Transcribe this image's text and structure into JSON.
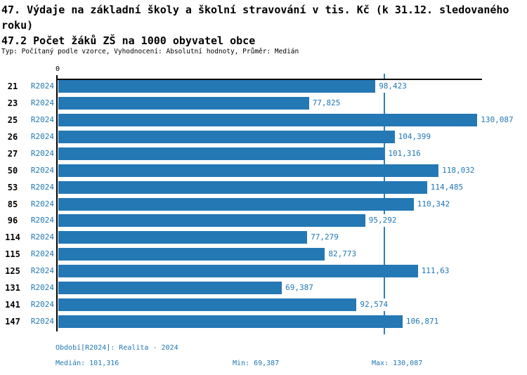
{
  "header": {
    "title_line1": "47. Výdaje na základní školy a školní stravování v tis. Kč (k 31.12. sledovaného roku)",
    "title_line2": "47.2 Počet žáků ZŠ na 1000 obyvatel obce",
    "subtitle": "Typ: Počítaný podle vzorce, Vyhodnocení: Absolutní hodnoty, Průměr: Medián"
  },
  "chart_data": {
    "type": "bar",
    "orientation": "horizontal",
    "title": "47. Výdaje na základní školy a školní stravování v tis. Kč (k 31.12. sledovaného roku)",
    "subtitle": "47.2 Počet žáků ZŠ na 1000 obyvatel obce",
    "origin_label": "0",
    "series_label": "R2024",
    "categories": [
      "21",
      "23",
      "25",
      "26",
      "27",
      "50",
      "53",
      "85",
      "96",
      "114",
      "115",
      "125",
      "131",
      "141",
      "147"
    ],
    "values": [
      98.423,
      77.825,
      130.087,
      104.399,
      101.316,
      118.032,
      114.485,
      110.342,
      95.292,
      77.279,
      82.773,
      111.63,
      69.387,
      92.574,
      106.871
    ],
    "value_labels": [
      "98,423",
      "77,825",
      "130,087",
      "104,399",
      "101,316",
      "118,032",
      "114,485",
      "110,342",
      "95,292",
      "77,279",
      "82,773",
      "111,63",
      "69,387",
      "92,574",
      "106,871"
    ],
    "median_line_value": 101.316,
    "xlim": [
      0,
      131.7
    ],
    "grid": false,
    "legend_position": "none",
    "bar_color": "#2478b4",
    "label_color": "#1f77b4",
    "median_line_color": "#2e7fb8",
    "axis_color": "#000000"
  },
  "footer": {
    "period": "Období[R2024]: Realita - 2024",
    "median": "Medián: 101,316",
    "min": "Min: 69,387",
    "max": "Max: 130,087"
  }
}
